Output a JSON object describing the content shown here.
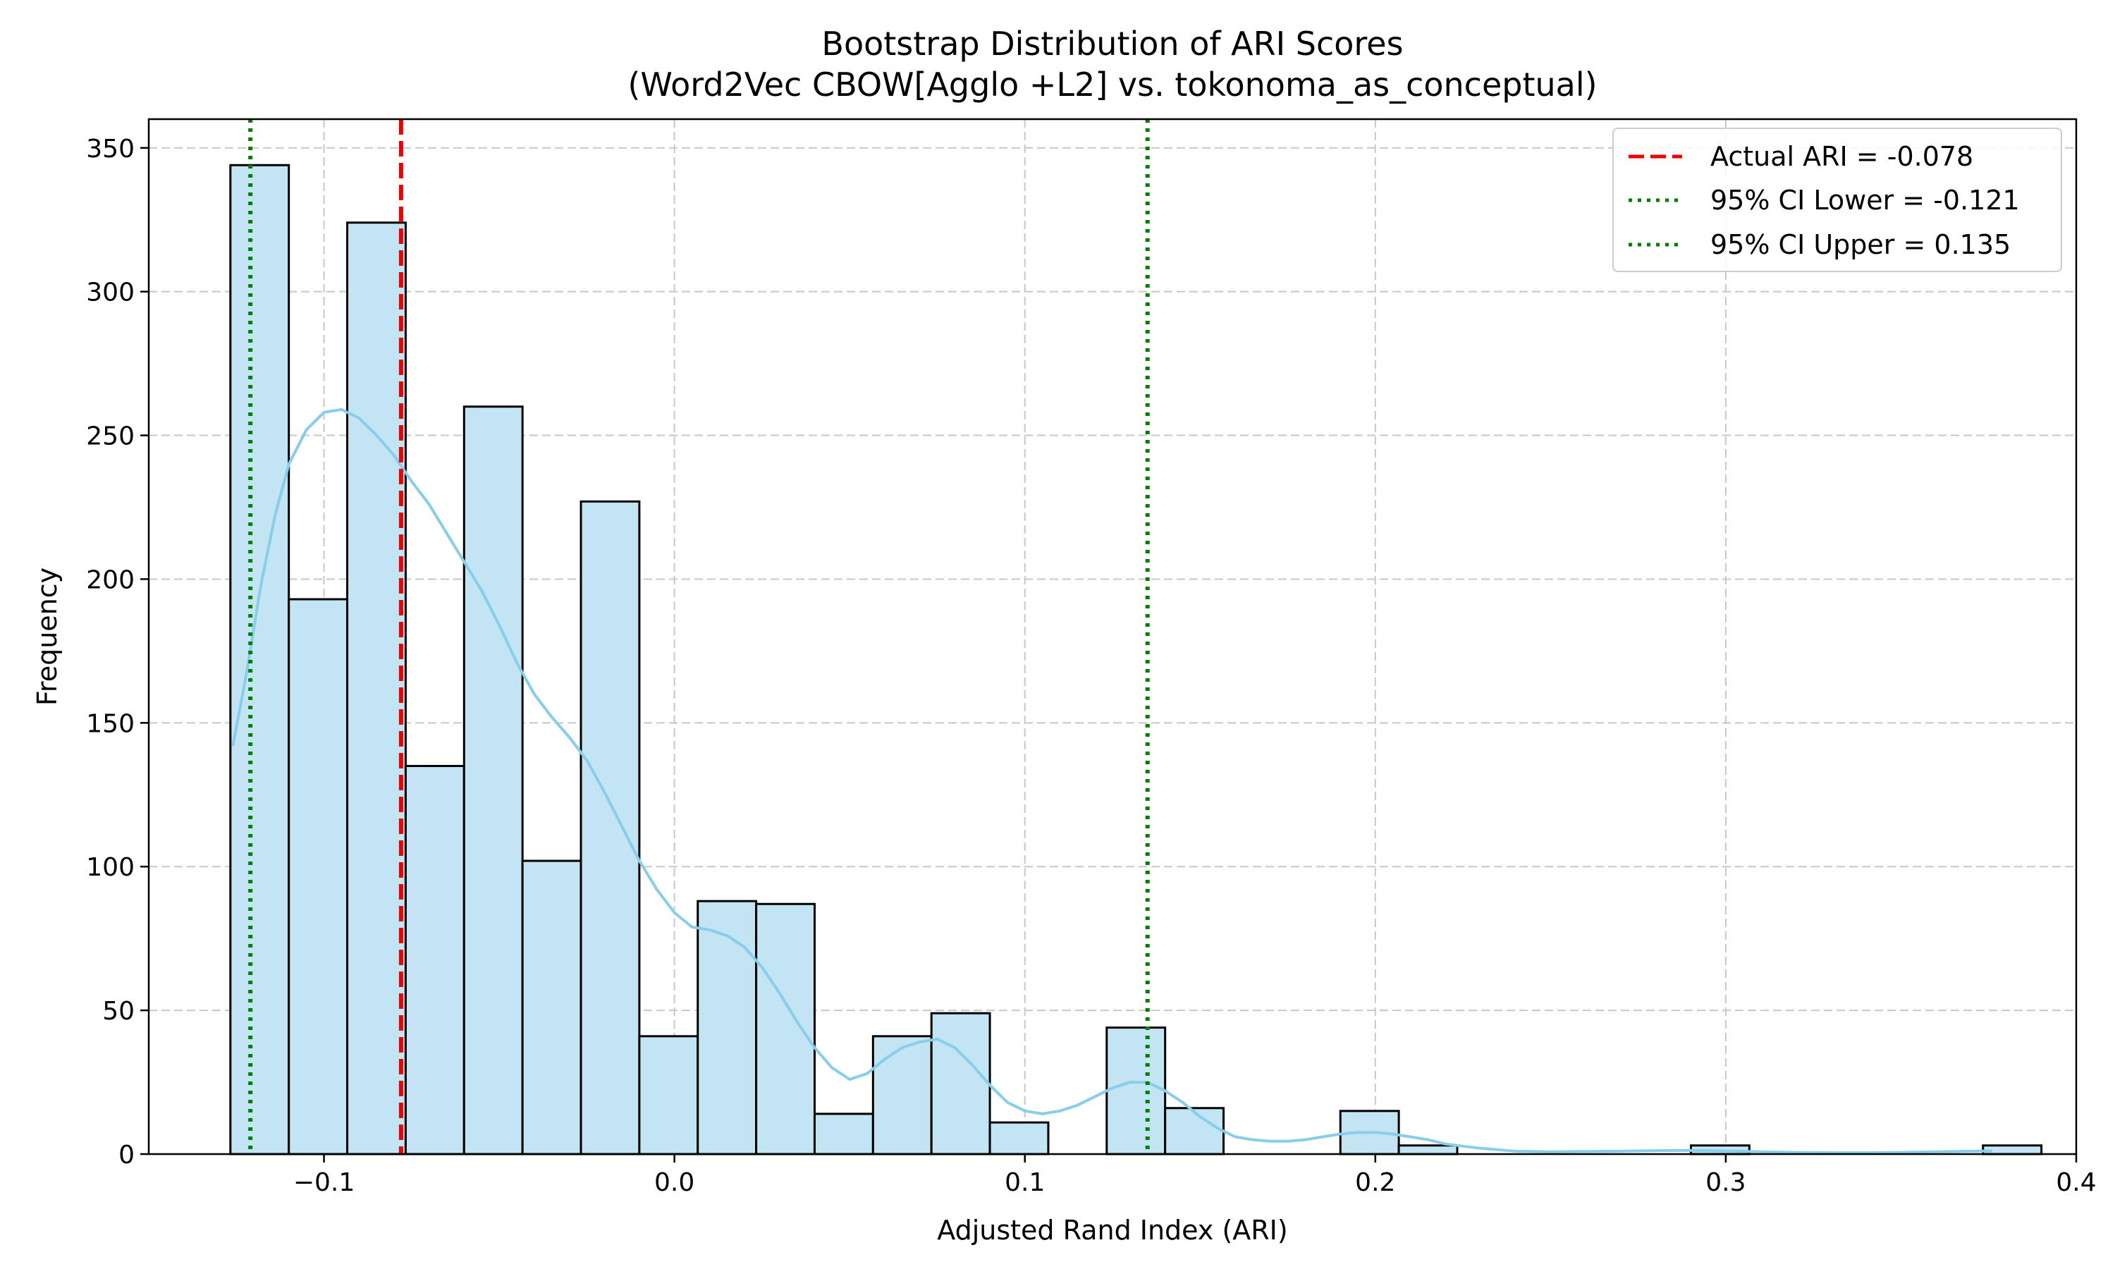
{
  "chart_data": {
    "type": "bar",
    "subtype": "histogram_with_kde",
    "title_line1": "Bootstrap Distribution of ARI Scores",
    "title_line2": "(Word2Vec CBOW[Agglo +L2] vs. tokonoma_as_conceptual)",
    "xlabel": "Adjusted Rand Index (ARI)",
    "ylabel": "Frequency",
    "xlim": [
      -0.15,
      0.4
    ],
    "ylim": [
      0,
      360
    ],
    "xticks": [
      -0.1,
      0.0,
      0.1,
      0.2,
      0.3,
      0.4
    ],
    "xtick_labels": [
      "−0.1",
      "0.0",
      "0.1",
      "0.2",
      "0.3",
      "0.4"
    ],
    "yticks": [
      0,
      50,
      100,
      150,
      200,
      250,
      300,
      350
    ],
    "ytick_labels": [
      "0",
      "50",
      "100",
      "150",
      "200",
      "250",
      "300",
      "350"
    ],
    "grid": true,
    "legend_position": "top-right",
    "bin_start": -0.1267,
    "bin_width": 0.01667,
    "values": [
      344,
      193,
      324,
      135,
      260,
      102,
      227,
      41,
      88,
      87,
      14,
      41,
      49,
      11,
      0,
      44,
      16,
      0,
      0,
      15,
      3,
      0,
      0,
      0,
      0,
      3,
      0,
      0,
      0,
      0,
      3
    ],
    "bar_color": "#c2e4f3",
    "bar_edge_color": "#000000",
    "kde": {
      "color": "#87ceeb",
      "x": [
        -0.126,
        -0.122,
        -0.118,
        -0.114,
        -0.11,
        -0.105,
        -0.1,
        -0.095,
        -0.09,
        -0.085,
        -0.08,
        -0.075,
        -0.07,
        -0.065,
        -0.06,
        -0.055,
        -0.05,
        -0.045,
        -0.04,
        -0.035,
        -0.03,
        -0.025,
        -0.02,
        -0.015,
        -0.01,
        -0.005,
        0.0,
        0.005,
        0.01,
        0.015,
        0.02,
        0.025,
        0.03,
        0.035,
        0.04,
        0.045,
        0.05,
        0.055,
        0.06,
        0.065,
        0.07,
        0.075,
        0.08,
        0.085,
        0.09,
        0.095,
        0.1,
        0.105,
        0.11,
        0.115,
        0.12,
        0.125,
        0.13,
        0.135,
        0.14,
        0.145,
        0.15,
        0.155,
        0.16,
        0.165,
        0.17,
        0.175,
        0.18,
        0.185,
        0.19,
        0.195,
        0.2,
        0.205,
        0.21,
        0.215,
        0.22,
        0.23,
        0.24,
        0.25,
        0.26,
        0.27,
        0.28,
        0.29,
        0.3,
        0.31,
        0.32,
        0.33,
        0.34,
        0.35,
        0.36,
        0.37,
        0.376
      ],
      "y": [
        142,
        168,
        198,
        222,
        240,
        252,
        258,
        259,
        256,
        250,
        243,
        234,
        226,
        216,
        206,
        196,
        184,
        171,
        160,
        152,
        145,
        137,
        126,
        114,
        102,
        92,
        84,
        79,
        78,
        76,
        72,
        65,
        56,
        46,
        37,
        30,
        26,
        28,
        33,
        37,
        39,
        40,
        37,
        31,
        24,
        18,
        15,
        14,
        15,
        17,
        20,
        23,
        25,
        25,
        22,
        18,
        13,
        9,
        6,
        5,
        4.5,
        4.5,
        5,
        6,
        7,
        7.5,
        7.5,
        7,
        6,
        5,
        3.5,
        2,
        1,
        0.8,
        0.9,
        1,
        1.2,
        1.3,
        1.1,
        0.8,
        0.6,
        0.5,
        0.5,
        0.6,
        0.8,
        1,
        1.1
      ]
    },
    "lines": [
      {
        "name": "Actual ARI = -0.078",
        "x": -0.078,
        "color": "#ee0000",
        "style": "dashed"
      },
      {
        "name": "95% CI Lower = -0.121",
        "x": -0.121,
        "color": "#008000",
        "style": "dotted"
      },
      {
        "name": "95% CI Upper = 0.135",
        "x": 0.135,
        "color": "#008000",
        "style": "dotted"
      }
    ]
  }
}
